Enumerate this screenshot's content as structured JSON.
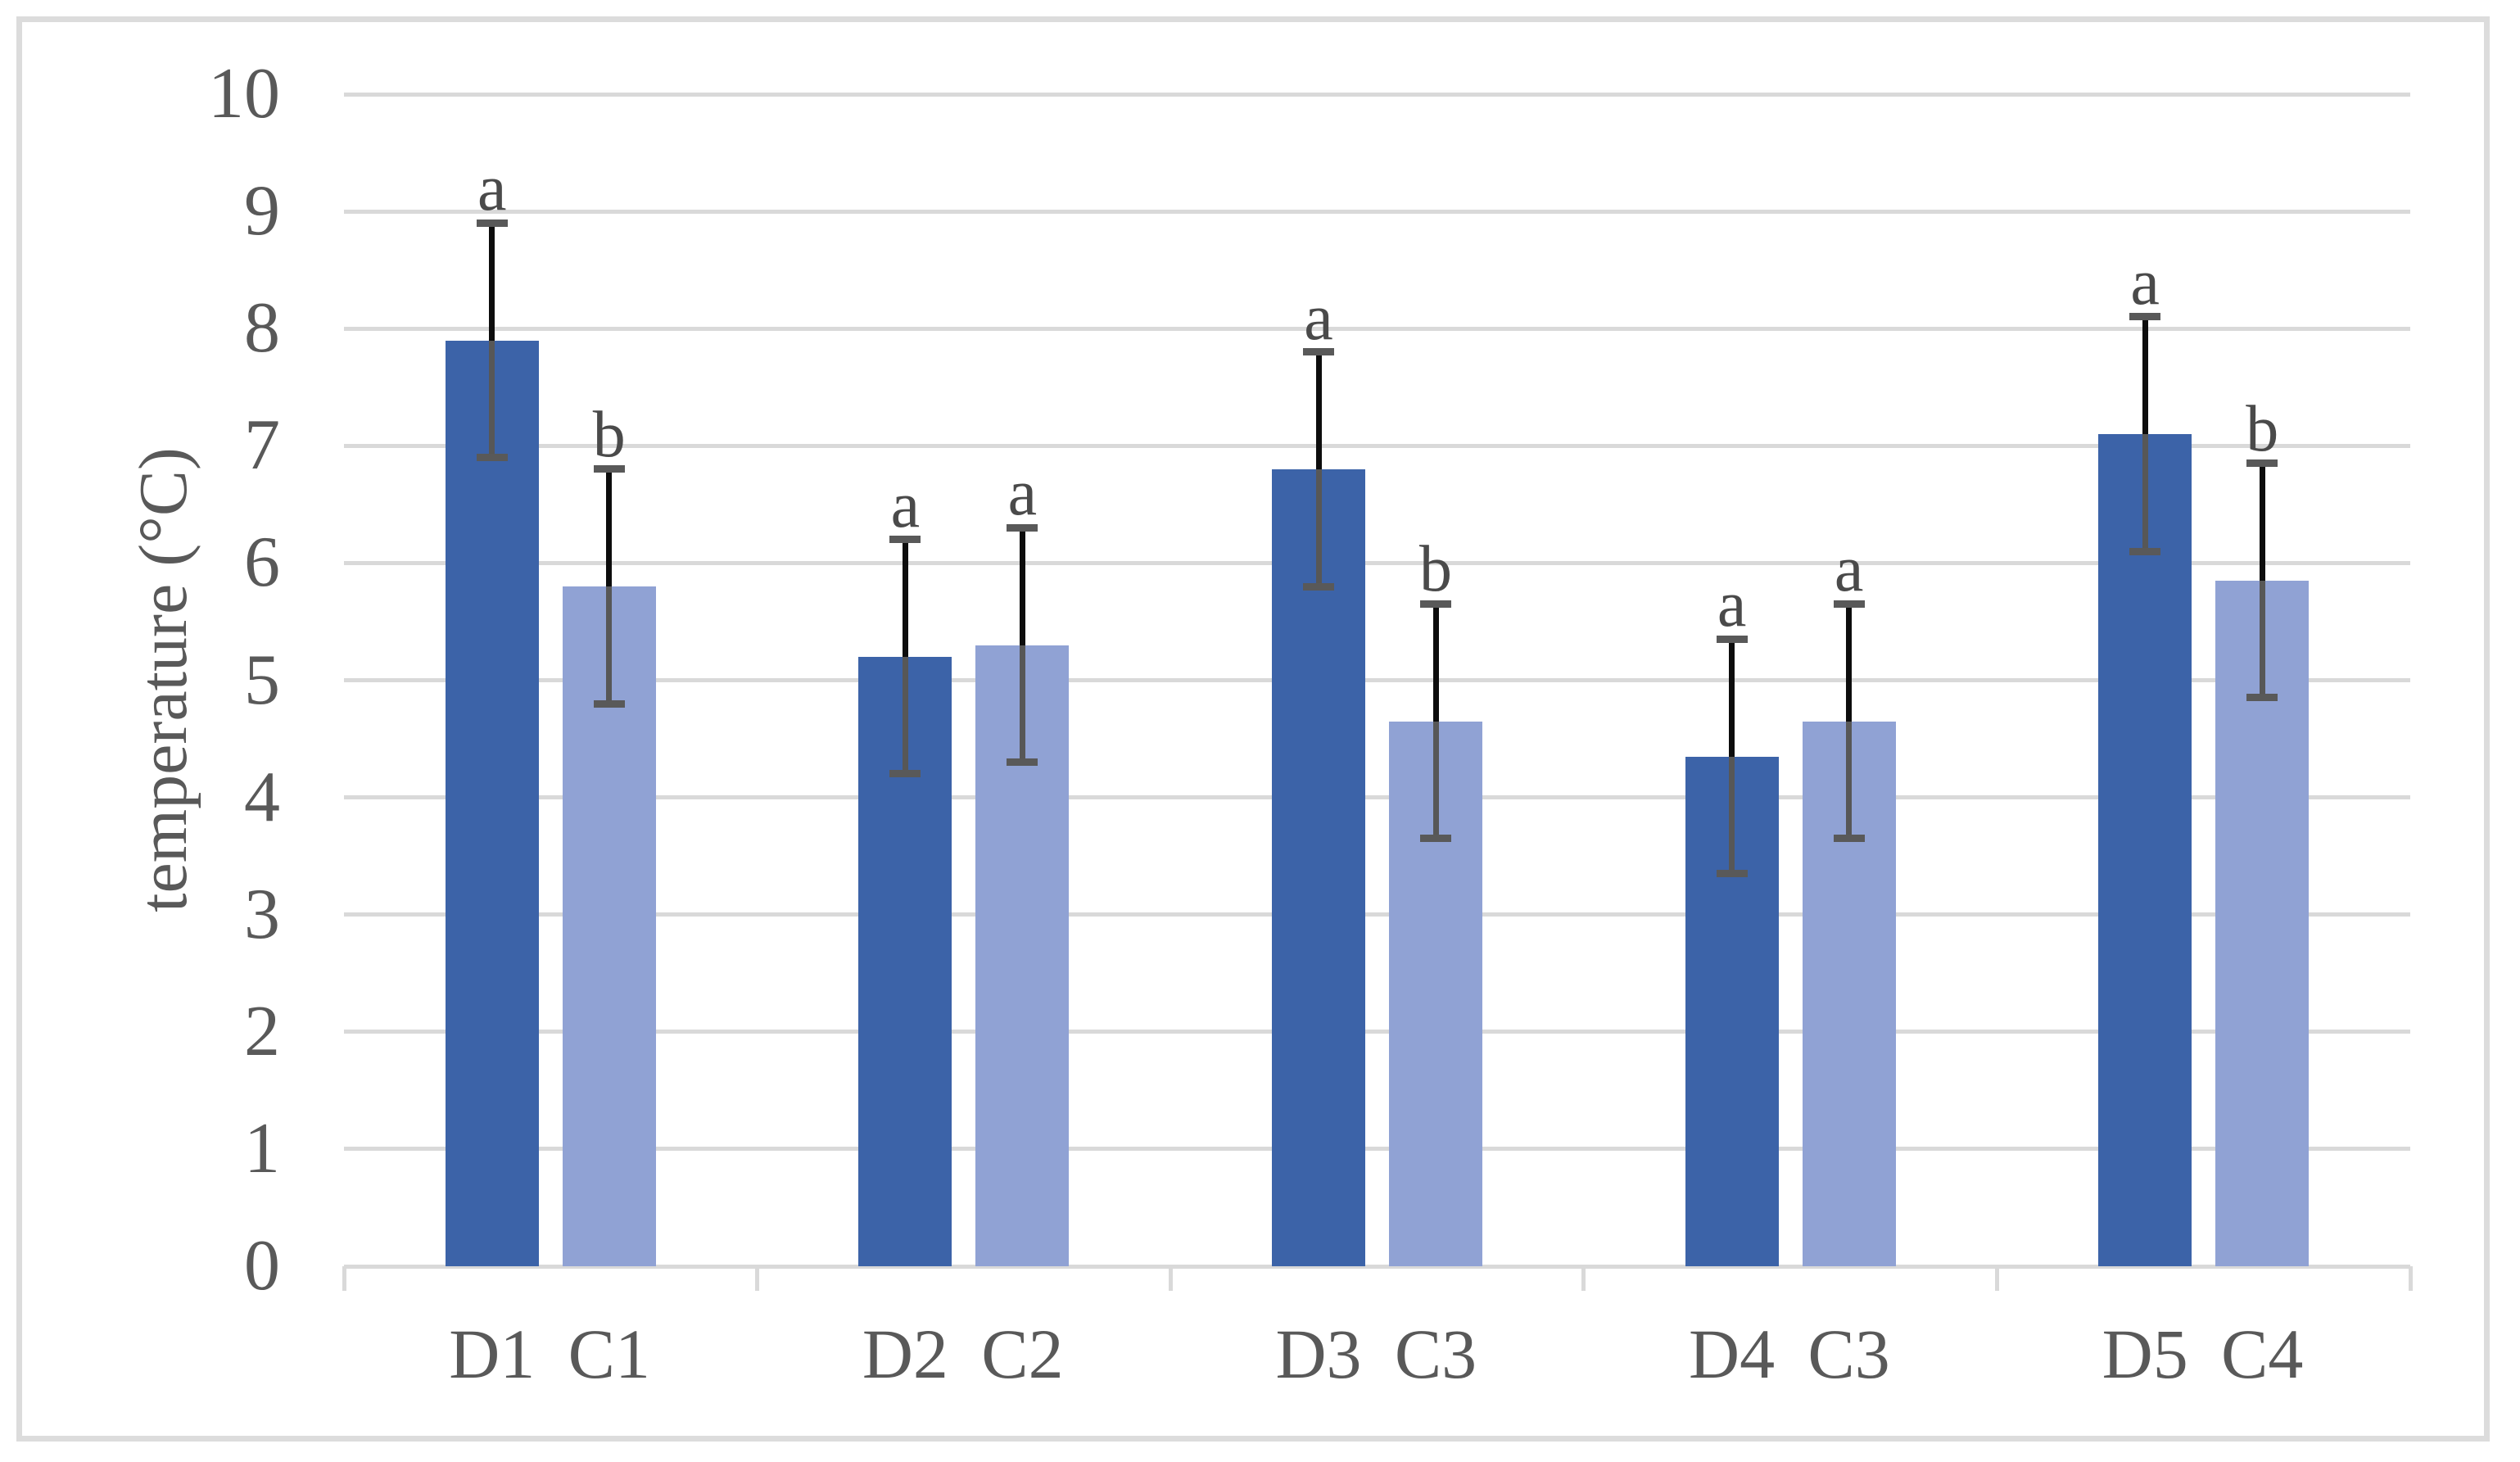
{
  "figure": {
    "background": "#ffffff",
    "border_color": "#dcdcdc"
  },
  "chart_data": {
    "type": "bar",
    "title": "",
    "xlabel": "",
    "ylabel": "temperature (°C)",
    "ylim": [
      0,
      10
    ],
    "yticks": [
      0,
      1,
      2,
      3,
      4,
      5,
      6,
      7,
      8,
      9,
      10
    ],
    "grid": true,
    "legend_position": "none",
    "pairs_per_group": 2,
    "categories": [
      "D1",
      "C1",
      "D2",
      "C2",
      "D3",
      "C3",
      "D4",
      "C3",
      "D5",
      "C4"
    ],
    "bars": [
      {
        "label": "D1",
        "value": 7.9,
        "error": 1.0,
        "letter": "a",
        "series": "dark"
      },
      {
        "label": "C1",
        "value": 5.8,
        "error": 1.0,
        "letter": "b",
        "series": "light"
      },
      {
        "label": "D2",
        "value": 5.2,
        "error": 1.0,
        "letter": "a",
        "series": "dark"
      },
      {
        "label": "C2",
        "value": 5.3,
        "error": 1.0,
        "letter": "a",
        "series": "light"
      },
      {
        "label": "D3",
        "value": 6.8,
        "error": 1.0,
        "letter": "a",
        "series": "dark"
      },
      {
        "label": "C3",
        "value": 4.65,
        "error": 1.0,
        "letter": "b",
        "series": "light"
      },
      {
        "label": "D4",
        "value": 4.35,
        "error": 1.0,
        "letter": "a",
        "series": "dark"
      },
      {
        "label": "C3",
        "value": 4.65,
        "error": 1.0,
        "letter": "a",
        "series": "light"
      },
      {
        "label": "D5",
        "value": 7.1,
        "error": 1.0,
        "letter": "a",
        "series": "dark"
      },
      {
        "label": "C4",
        "value": 5.85,
        "error": 1.0,
        "letter": "b",
        "series": "light"
      }
    ],
    "colors": {
      "dark_series": "#3c63a8",
      "light_series": "#90a2d4",
      "gridline": "#d9d9d9",
      "error_cap": "#595959",
      "error_whisker_up": "#0d0d0d",
      "error_whisker_down": "#575757",
      "tick_label": "#595959",
      "sig_letter": "#4a4a4a"
    }
  }
}
